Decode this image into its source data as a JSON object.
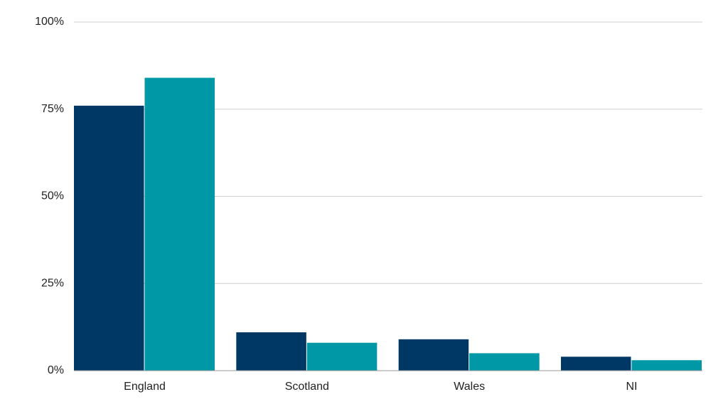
{
  "chart_data": {
    "type": "bar",
    "categories": [
      "England",
      "Scotland",
      "Wales",
      "NI"
    ],
    "series": [
      {
        "color": "#003865",
        "values": [
          76,
          11,
          9,
          4
        ]
      },
      {
        "color": "#0097a7",
        "values": [
          84,
          8,
          5,
          3
        ]
      }
    ],
    "ylim": [
      0,
      100
    ],
    "yticks": [
      {
        "value": 0,
        "label": "0%"
      },
      {
        "value": 25,
        "label": "25%"
      },
      {
        "value": 50,
        "label": "50%"
      },
      {
        "value": 75,
        "label": "75%"
      },
      {
        "value": 100,
        "label": "100%"
      }
    ],
    "grid": true
  }
}
